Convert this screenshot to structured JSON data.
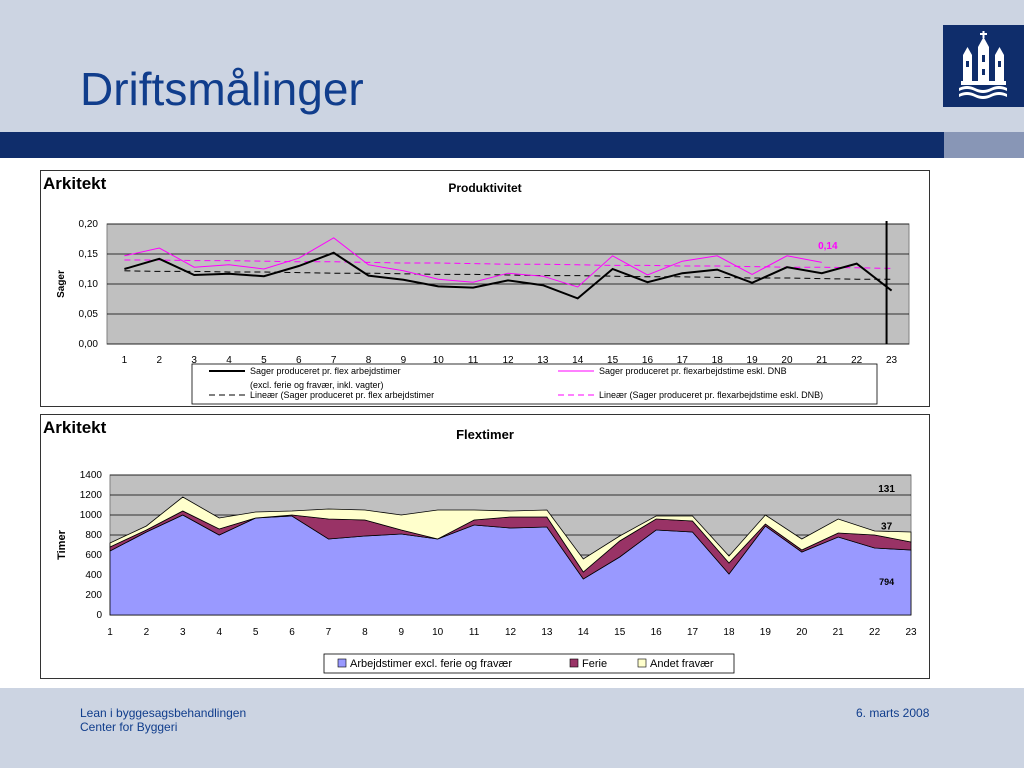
{
  "slide": {
    "title": "Driftsmålinger",
    "footer_left_line1": "Lean i byggesagsbehandlingen",
    "footer_left_line2": "Center for Byggeri",
    "footer_right": "6. marts 2008"
  },
  "colors": {
    "title": "#103d8c",
    "band": "#0f2d6b",
    "plot_bg": "#c0c0c0"
  },
  "chart_data": [
    {
      "panel_label": "Arkitekt",
      "type": "line",
      "title": "Produktivitet",
      "ylabel": "Sager",
      "ylim": [
        0,
        0.2
      ],
      "y_ticks": [
        "0,00",
        "0,05",
        "0,10",
        "0,15",
        "0,20"
      ],
      "x": [
        "1",
        "2",
        "3",
        "4",
        "5",
        "6",
        "7",
        "8",
        "9",
        "10",
        "11",
        "12",
        "13",
        "14",
        "15",
        "16",
        "17",
        "18",
        "19",
        "20",
        "21",
        "22",
        "23"
      ],
      "annotation": "0,14",
      "legend_note": "(excl. ferie og fravær, inkl. vagter)",
      "series": [
        {
          "name": "Sager produceret pr. flex arbejdstimer",
          "color": "#000000",
          "values": [
            0.125,
            0.142,
            0.115,
            0.117,
            0.113,
            0.13,
            0.152,
            0.114,
            0.107,
            0.096,
            0.094,
            0.106,
            0.098,
            0.076,
            0.125,
            0.103,
            0.118,
            0.124,
            0.102,
            0.128,
            0.118,
            0.134,
            0.089
          ]
        },
        {
          "name": "Sager produceret pr. flexarbejdstime eskl. DNB",
          "color": "#ff00ff",
          "values": [
            0.147,
            0.16,
            0.128,
            0.132,
            0.125,
            0.143,
            0.177,
            0.132,
            0.122,
            0.108,
            0.103,
            0.118,
            0.113,
            0.095,
            0.147,
            0.115,
            0.138,
            0.147,
            0.116,
            0.147,
            0.136,
            null,
            null
          ]
        },
        {
          "name": "Lineær (Sager produceret pr. flex arbejdstimer",
          "color": "#000000",
          "values": [
            0.122,
            0.121,
            0.121,
            0.12,
            0.12,
            0.119,
            0.118,
            0.118,
            0.117,
            0.116,
            0.116,
            0.115,
            0.114,
            0.114,
            0.113,
            0.112,
            0.112,
            0.111,
            0.11,
            0.11,
            0.109,
            0.108,
            0.108
          ]
        },
        {
          "name": "Lineær (Sager produceret pr. flexarbejdstime eskl. DNB)",
          "color": "#ff00ff",
          "values": [
            0.14,
            0.14,
            0.139,
            0.139,
            0.138,
            0.137,
            0.137,
            0.136,
            0.135,
            0.135,
            0.134,
            0.133,
            0.133,
            0.132,
            0.131,
            0.131,
            0.13,
            0.13,
            0.129,
            0.128,
            0.128,
            0.127,
            0.126
          ]
        }
      ]
    },
    {
      "panel_label": "Arkitekt",
      "type": "area",
      "title": "Flextimer",
      "ylabel": "Timer",
      "ylim": [
        0,
        1400
      ],
      "y_ticks": [
        "0",
        "200",
        "400",
        "600",
        "800",
        "1000",
        "1200",
        "1400"
      ],
      "x": [
        "1",
        "2",
        "3",
        "4",
        "5",
        "6",
        "7",
        "8",
        "9",
        "10",
        "11",
        "12",
        "13",
        "14",
        "15",
        "16",
        "17",
        "18",
        "19",
        "20",
        "21",
        "22",
        "23"
      ],
      "data_labels": [
        "131",
        "37",
        "794"
      ],
      "series": [
        {
          "name": "Arbejdstimer excl. ferie og fravær",
          "color": "#9999ff",
          "values": [
            640,
            830,
            1000,
            800,
            970,
            990,
            760,
            790,
            810,
            760,
            900,
            870,
            880,
            360,
            580,
            850,
            830,
            410,
            890,
            630,
            780,
            670,
            650
          ]
        },
        {
          "name": "Ferie",
          "color": "#993366",
          "values": [
            40,
            20,
            40,
            60,
            0,
            10,
            200,
            160,
            40,
            0,
            50,
            110,
            100,
            70,
            160,
            110,
            110,
            110,
            20,
            20,
            40,
            130,
            80
          ]
        },
        {
          "name": "Andet fravær",
          "color": "#ffffcc",
          "values": [
            40,
            40,
            140,
            110,
            60,
            40,
            100,
            100,
            150,
            290,
            100,
            60,
            70,
            130,
            50,
            30,
            50,
            70,
            90,
            110,
            140,
            40,
            100
          ]
        }
      ]
    }
  ]
}
